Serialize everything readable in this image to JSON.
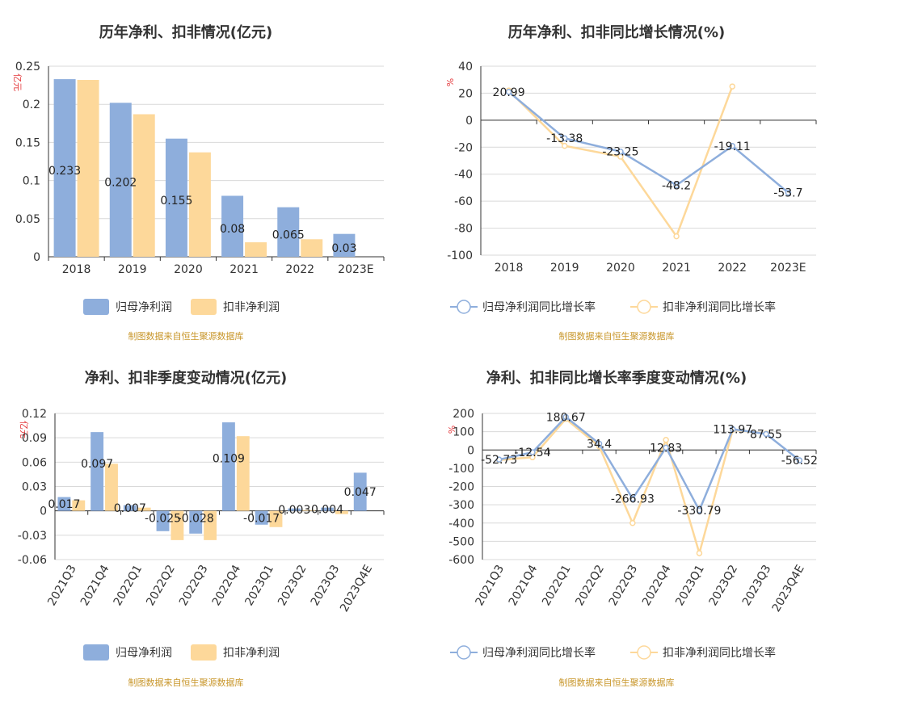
{
  "source_note": "制图数据来自恒生聚源数据库",
  "colors": {
    "series1": "#8eaedc",
    "series2": "#fdd89a",
    "grid": "#d9d9d9",
    "axis": "#333333"
  },
  "chart_data": [
    {
      "type": "bar",
      "title": "历年净利、扣非情况(亿元)",
      "ylabel": "亿元",
      "categories": [
        "2018",
        "2019",
        "2020",
        "2021",
        "2022",
        "2023E"
      ],
      "ylim": [
        0,
        0.25
      ],
      "yticks": [
        0,
        0.05,
        0.1,
        0.15,
        0.2,
        0.25
      ],
      "ytick_labels": [
        "0",
        "0.05",
        "0.1",
        "0.15",
        "0.2",
        "0.25"
      ],
      "grid": true,
      "legend": "bottom",
      "series": [
        {
          "name": "归母净利润",
          "values": [
            0.233,
            0.202,
            0.155,
            0.08,
            0.065,
            0.03
          ]
        },
        {
          "name": "扣非净利润",
          "values": [
            0.232,
            0.187,
            0.137,
            0.019,
            0.023,
            null
          ]
        }
      ],
      "data_labels": [
        "0.233",
        "0.202",
        "0.155",
        "0.08",
        "0.065",
        "0.03"
      ]
    },
    {
      "type": "line",
      "title": "历年净利、扣非同比增长情况(%)",
      "ylabel": "%",
      "categories": [
        "2018",
        "2019",
        "2020",
        "2021",
        "2022",
        "2023E"
      ],
      "ylim": [
        -100,
        40
      ],
      "yticks": [
        -100,
        -80,
        -60,
        -40,
        -20,
        0,
        20,
        40
      ],
      "ytick_labels": [
        "-100",
        "-80",
        "-60",
        "-40",
        "-20",
        "0",
        "20",
        "40"
      ],
      "grid": true,
      "legend": "bottom",
      "series": [
        {
          "name": "归母净利润同比增长率",
          "values": [
            20.99,
            -13.38,
            -23.25,
            -48.2,
            -19.11,
            -53.7
          ]
        },
        {
          "name": "扣非净利润同比增长率",
          "values": [
            22,
            -19,
            -27,
            -86,
            25,
            null
          ]
        }
      ],
      "data_labels": [
        "20.99",
        "-13.38",
        "-23.25",
        "-48.2",
        "-19.11",
        "-53.7"
      ]
    },
    {
      "type": "bar",
      "title": "净利、扣非季度变动情况(亿元)",
      "ylabel": "亿元",
      "categories": [
        "2021Q3",
        "2021Q4",
        "2022Q1",
        "2022Q2",
        "2022Q3",
        "2022Q4",
        "2023Q1",
        "2023Q2",
        "2023Q3",
        "2023Q4E"
      ],
      "ylim": [
        -0.06,
        0.12
      ],
      "yticks": [
        -0.06,
        -0.03,
        0,
        0.03,
        0.06,
        0.09,
        0.12
      ],
      "ytick_labels": [
        "-0.06",
        "-0.03",
        "0",
        "0.03",
        "0.06",
        "0.09",
        "0.12"
      ],
      "grid": true,
      "legend": "bottom",
      "series": [
        {
          "name": "归母净利润",
          "values": [
            0.017,
            0.097,
            0.007,
            -0.025,
            -0.028,
            0.109,
            -0.017,
            0.003,
            0.004,
            0.047
          ]
        },
        {
          "name": "扣非净利润",
          "values": [
            0.013,
            0.058,
            0.004,
            -0.036,
            -0.036,
            0.092,
            -0.02,
            0.001,
            -0.004,
            null
          ]
        }
      ],
      "data_labels": [
        "0.017",
        "0.097",
        "0.007",
        "-0.025",
        "-0.028",
        "0.109",
        "-0.017",
        "0.003",
        "0.004",
        "0.047"
      ]
    },
    {
      "type": "line",
      "title": "净利、扣非同比增长率季度变动情况(%)",
      "ylabel": "%",
      "categories": [
        "2021Q3",
        "2021Q4",
        "2022Q1",
        "2022Q2",
        "2022Q3",
        "2022Q4",
        "2023Q1",
        "2023Q2",
        "2023Q3",
        "2023Q4E"
      ],
      "ylim": [
        -600,
        200
      ],
      "yticks": [
        -600,
        -500,
        -400,
        -300,
        -200,
        -100,
        0,
        100,
        200
      ],
      "ytick_labels": [
        "-600",
        "-500",
        "-400",
        "-300",
        "-200",
        "-100",
        "0",
        "100",
        "200"
      ],
      "grid": true,
      "legend": "bottom",
      "series": [
        {
          "name": "归母净利润同比增长率",
          "values": [
            -52.73,
            -12.54,
            180.67,
            34.4,
            -266.93,
            12.83,
            -330.79,
            113.97,
            87.55,
            -56.52
          ]
        },
        {
          "name": "扣非净利润同比增长率",
          "values": [
            -55,
            -40,
            170,
            20,
            -400,
            55,
            -565,
            110,
            90,
            null
          ]
        }
      ],
      "data_labels": [
        "-52.73",
        "-12.54",
        "180.67",
        "34.4",
        "-266.93",
        "12.83",
        "-330.79",
        "113.97",
        "87.55",
        "-56.52"
      ]
    }
  ]
}
